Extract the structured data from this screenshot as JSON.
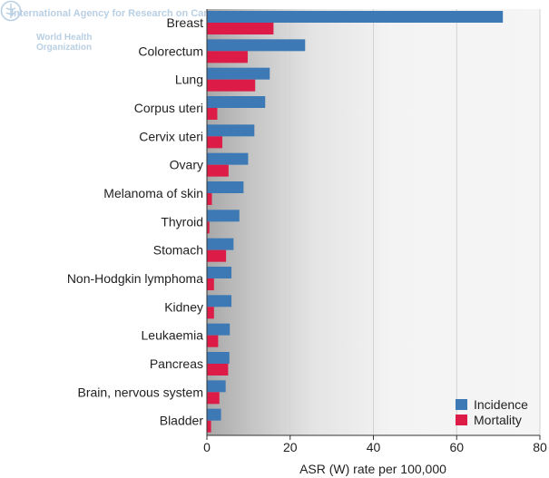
{
  "watermark": {
    "agency": "International Agency for Research on Cancer",
    "org_line1": "World Health",
    "org_line2": "Organization",
    "logo_icon": "who-emblem-icon"
  },
  "chart_data": {
    "type": "bar",
    "orientation": "horizontal",
    "categories": [
      "Breast",
      "Colorectum",
      "Lung",
      "Corpus uteri",
      "Cervix uteri",
      "Ovary",
      "Melanoma of skin",
      "Thyroid",
      "Stomach",
      "Non-Hodgkin lymphoma",
      "Kidney",
      "Leukaemia",
      "Pancreas",
      "Brain, nervous system",
      "Bladder"
    ],
    "series": [
      {
        "name": "Incidence",
        "color": "#3d7ab5",
        "values": [
          71.1,
          23.6,
          15.1,
          14.0,
          11.4,
          9.9,
          8.8,
          7.8,
          6.4,
          5.9,
          5.9,
          5.5,
          5.4,
          4.5,
          3.4
        ]
      },
      {
        "name": "Mortality",
        "color": "#dc1c47",
        "values": [
          16.0,
          9.8,
          11.6,
          2.5,
          3.7,
          5.2,
          1.2,
          0.6,
          4.6,
          1.7,
          1.7,
          2.7,
          5.1,
          3.0,
          1.0
        ]
      }
    ],
    "xlabel": "ASR (W) rate per 100,000",
    "xlim": [
      0,
      80
    ],
    "xticks": [
      "0",
      "20",
      "40",
      "60",
      "80"
    ],
    "legend_position": "bottom-right",
    "grid": true
  }
}
